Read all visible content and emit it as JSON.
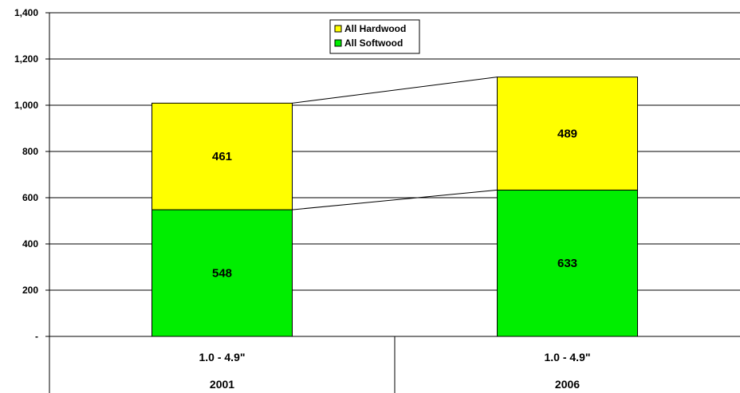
{
  "chart_data": {
    "type": "bar",
    "stacked": true,
    "categories": [
      "1.0 - 4.9\"",
      "1.0 - 4.9\""
    ],
    "groups": [
      "2001",
      "2006"
    ],
    "series": [
      {
        "name": "All Softwood",
        "values": [
          548,
          633
        ],
        "color": "#00ee00"
      },
      {
        "name": "All Hardwood",
        "values": [
          461,
          489
        ],
        "color": "#ffff00"
      }
    ],
    "y_ticks": [
      0,
      200,
      400,
      600,
      800,
      1000,
      1200,
      1400
    ],
    "y_tick_labels": [
      "-",
      "200",
      "400",
      "600",
      "800",
      "1,000",
      "1,200",
      "1,400"
    ],
    "ylim": [
      0,
      1400
    ],
    "grid": true,
    "legend_position": "top-center",
    "series_lines": true
  }
}
